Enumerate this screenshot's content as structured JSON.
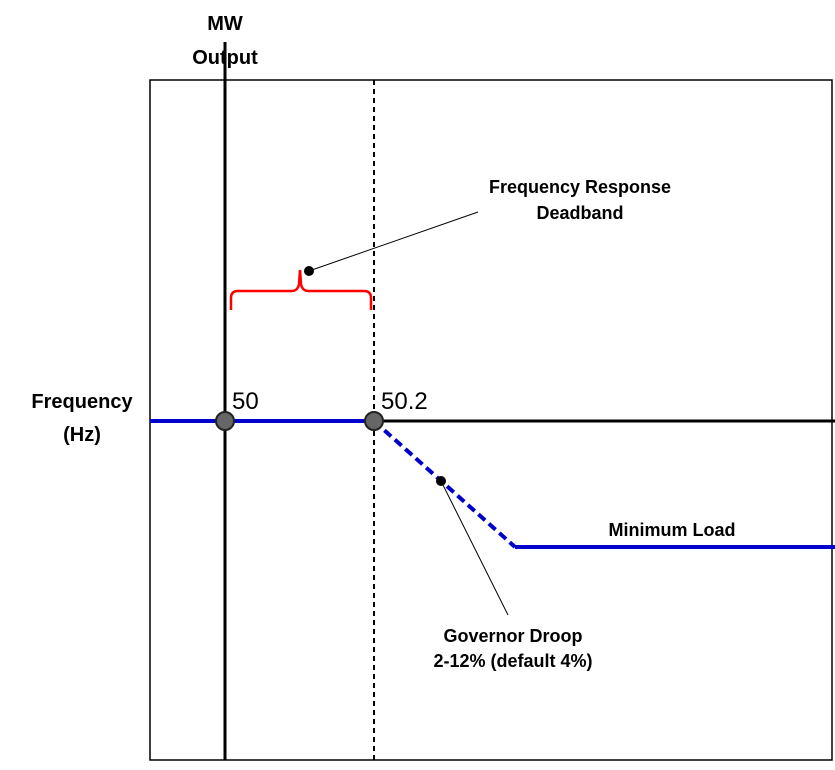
{
  "labels": {
    "y_axis_line1": "MW",
    "y_axis_line2": "Output",
    "x_axis_line1": "Frequency",
    "x_axis_line2": "(Hz)",
    "point_50": "50",
    "point_50_2": "50.2",
    "deadband_line1": "Frequency Response",
    "deadband_line2": "Deadband",
    "min_load": "Minimum Load",
    "droop_line1": "Governor Droop",
    "droop_line2": "2-12% (default 4%)"
  },
  "colors": {
    "frame": "#000000",
    "axis": "#000000",
    "response_line": "#0000cc",
    "bracket": "#ff0000",
    "marker_fill": "#666666",
    "leader": "#000000"
  }
}
